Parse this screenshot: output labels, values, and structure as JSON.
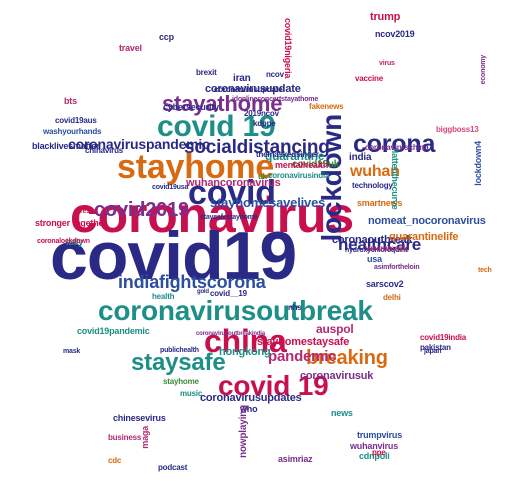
{
  "palette": {
    "crimson": "#c8104f",
    "navy": "#2a2a86",
    "orange": "#d96a12",
    "teal": "#1d8f86",
    "purple": "#7a2f8f",
    "magenta": "#b22a73",
    "blue": "#2d4fa0",
    "green": "#3d8a3a",
    "pink": "#d9487f"
  },
  "words": [
    "covid19",
    "coronavirus",
    "coronavirusoutbreak",
    "china",
    "stayhome",
    "covid 19",
    "covid",
    "lockdown",
    "stayathome",
    "covid 19",
    "socialdistancing",
    "corona",
    "covid2019",
    "indiafightscorona",
    "breaking",
    "staysafe",
    "wuhan",
    "healthcare",
    "pandemic",
    "coronaviruspandemic",
    "stayhomesavelives",
    "coronavirusupdate",
    "wuhancoronavirus",
    "quarantine",
    "coronavirusupdates",
    "trump",
    "hongkong",
    "auspol",
    "coronaoutbreak",
    "nomeat_nocoronavirus",
    "quarantinelife",
    "india",
    "stayhomestaysafe",
    "coronavirusuk",
    "covid19uk",
    "iran",
    "smartnews",
    "news",
    "trumpvirus",
    "wuhanvirus",
    "cdnpoli",
    "ncov2019",
    "bts",
    "travel",
    "stronger together",
    "blacklivesmatter",
    "chinesevirus",
    "covid19pandemic",
    "sarscov2",
    "italy",
    "hydroxychloroquine",
    "asimfortheloin",
    "mentalhealth",
    "coronavirusindia",
    "technology",
    "wearamask",
    "usa",
    "themaskedsinger",
    "flattenthecurve",
    "coronaviruschina",
    "pakistan",
    "covid19india",
    "delhi",
    "biggboss13",
    "lockdown4",
    "vaccine",
    "ccp",
    "asimriaz",
    "who",
    "maga",
    "business",
    "music",
    "podcast",
    "cdc",
    "ppe",
    "uk",
    "nhs",
    "health",
    "covid__19",
    "chinavirus",
    "cybersecurity",
    "idonlineconcertstayathome",
    "2019ncov",
    "kdppe",
    "fakenews",
    "brexit",
    "coronavirusupdate",
    "covid19aus",
    "washyourhands",
    "stayhome",
    "covid19nigeria",
    "ncov",
    "virus",
    "economy",
    "coronavirusoutbreakindia",
    "publichealth",
    "nowplaying",
    "staysafestayhome",
    "gold",
    "tech",
    "mask",
    "japan",
    "covid19usa",
    "coronalockdown",
    "resist"
  ]
}
